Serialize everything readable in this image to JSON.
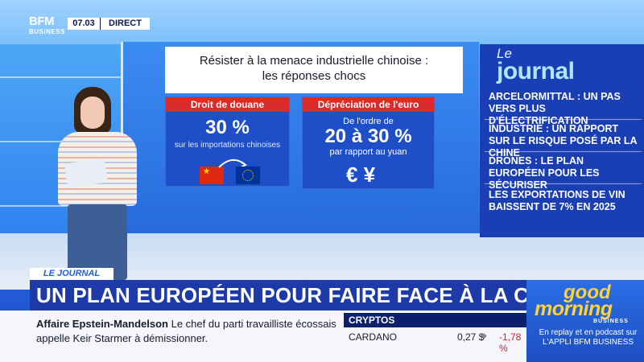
{
  "channel": {
    "logo_line1": "BFM",
    "logo_line2": "BUSINESS",
    "time": "07.03",
    "live_label": "DIRECT"
  },
  "infographic": {
    "title_line1": "Résister à la menace industrielle chinoise :",
    "title_line2": "les réponses chocs",
    "card_left": {
      "heading": "Droit de douane",
      "value": "30 %",
      "caption": "sur les importations chinoises"
    },
    "card_right": {
      "heading": "Dépréciation de l'euro",
      "prefix": "De l'ordre de",
      "value": "20 à 30 %",
      "caption": "par rapport au yuan",
      "currency_symbols": "€ ¥"
    },
    "flags": [
      "china-flag-icon",
      "eu-flag-icon"
    ]
  },
  "journal_panel": {
    "brand_small": "Le",
    "brand_big": "journal",
    "headlines": [
      "ARCELORMITTAL : UN PAS VERS PLUS D'ÉLECTRIFICATION",
      "INDUSTRIE : UN RAPPORT SUR LE RISQUE POSÉ PAR LA CHINE",
      "DRONES : LE PLAN EUROPÉEN POUR LES SÉCURISER",
      "LES EXPORTATIONS DE VIN BAISSENT DE 7% EN 2025"
    ]
  },
  "lower_third": {
    "tag": "LE JOURNAL",
    "title": "UN PLAN EUROPÉEN POUR FAIRE FACE À LA CHINE",
    "ticker_bold": "Affaire Epstein-Mandelson",
    "ticker_text": "Le chef du parti travailliste écossais appelle Keir Starmer à démissionner."
  },
  "crypto": {
    "title": "CRYPTOS",
    "name": "CARDANO",
    "value": "0,27 $",
    "change": "-1,78 %",
    "change_color": "#d41f2b"
  },
  "show": {
    "line1": "good",
    "line2": "morning",
    "line3": "BUSINESS",
    "replay": "En replay et en podcast sur L'APPLI BFM BUSINESS"
  },
  "colors": {
    "brand_blue": "#1d3aa8",
    "accent_red": "#d92b2b",
    "gmb_yellow": "#ffd23a"
  }
}
